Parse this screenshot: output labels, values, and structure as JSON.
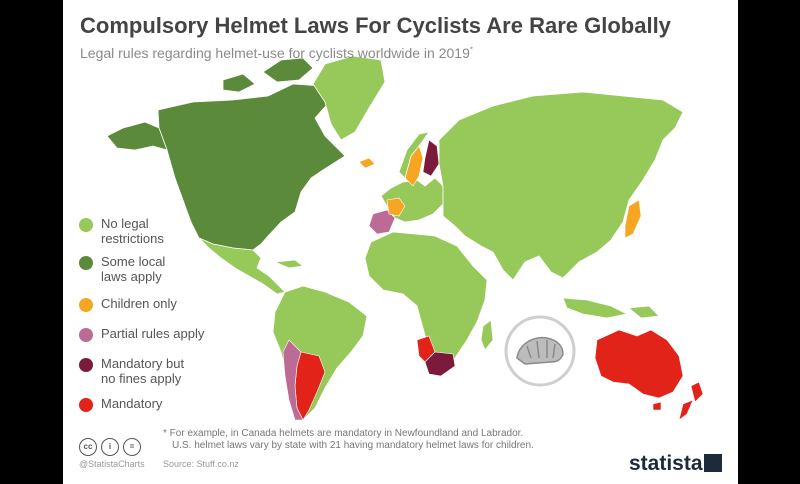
{
  "header": {
    "title": "Compulsory Helmet Laws For Cyclists Are Rare Globally",
    "subtitle": "Legal rules regarding helmet-use for cyclists worldwide in 2019",
    "subtitle_mark": "*"
  },
  "legend": {
    "items": [
      {
        "label": "No legal\nrestrictions",
        "color": "#96c85a"
      },
      {
        "label": "Some local\nlaws apply",
        "color": "#5a8a3a"
      },
      {
        "label": "Children only",
        "color": "#f6a623"
      },
      {
        "label": "Partial rules apply",
        "color": "#bb6b94"
      },
      {
        "label": "Mandatory but\nno fines apply",
        "color": "#7c1a3e"
      },
      {
        "label": "Mandatory",
        "color": "#e2231a"
      }
    ]
  },
  "footnote": {
    "line1": "* For example, in Canada helmets are mandatory in Newfoundland and Labrador.",
    "line2": "U.S. helmet laws vary by state with 21 having mandatory helmet laws for children."
  },
  "credits": {
    "cc_icons": [
      "cc",
      "i",
      "="
    ],
    "handle": "@StatistaCharts",
    "source": "Source: Stuff.co.nz"
  },
  "brand": {
    "name": "statista"
  }
}
